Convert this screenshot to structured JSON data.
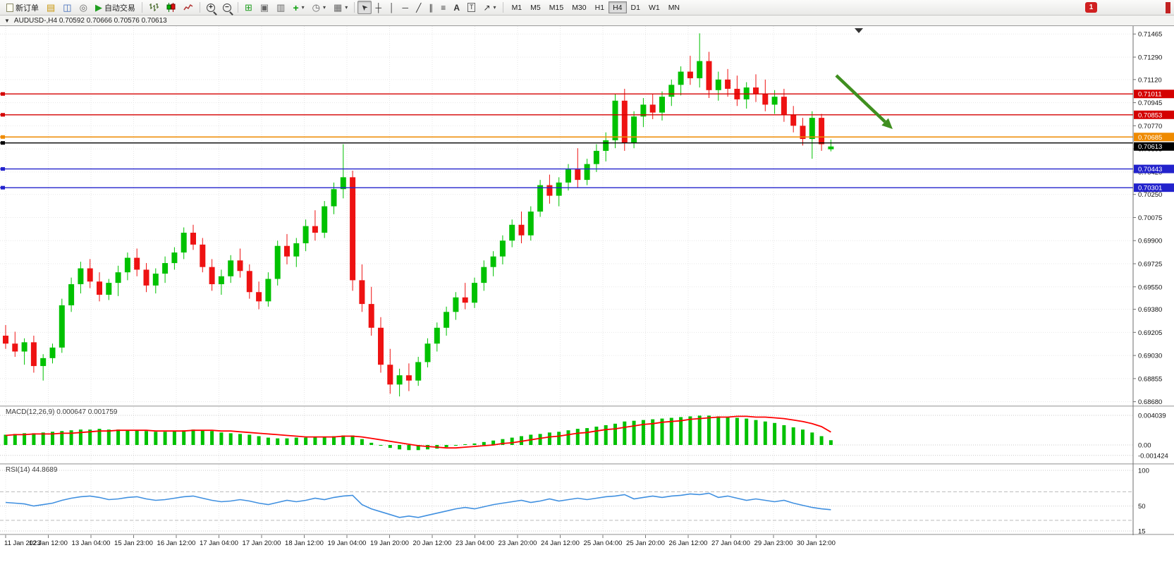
{
  "toolbar": {
    "new_order_label": "新订单",
    "autotrade_label": "自动交易",
    "timeframes": [
      "M1",
      "M5",
      "M15",
      "M30",
      "H1",
      "H4",
      "D1",
      "W1",
      "MN"
    ],
    "active_timeframe": "H4",
    "notification_count": "1",
    "icons": {
      "market_watch": "▤",
      "data_window": "◫",
      "navigator": "◎",
      "autotrade": "▶",
      "zoom_in": "+",
      "zoom_out": "−",
      "tile": "⊞",
      "cascade": "▣",
      "arrange": "▥",
      "indicators_plus": "+",
      "periods": "◷",
      "templates": "▦",
      "caret": "▾",
      "cursor": "➤",
      "crosshair": "┼",
      "vline": "│",
      "hline": "─",
      "trendline": "╱",
      "channel": "∥",
      "fibonacci": "≡",
      "text": "A",
      "text_label": "T",
      "arrows": "↗",
      "window_menu": "▼"
    }
  },
  "chart": {
    "title": "AUDUSD-,H4 0.70592 0.70666 0.70576 0.70613"
  },
  "chart_data": {
    "type": "candlestick",
    "symbol": "AUDUSD-",
    "timeframe": "H4",
    "current_bar": {
      "open": 0.70592,
      "high": 0.70666,
      "low": 0.70576,
      "close": 0.70613
    },
    "colors": {
      "bull": "#00c100",
      "bear": "#ee1212",
      "macd_hist": "#00c100",
      "macd_signal": "#ff0000",
      "rsi": "#4090e0",
      "arrow": "#3f8f1f"
    },
    "price_range": {
      "top": 0.71525,
      "bottom": 0.68662
    },
    "price_axis_ticks": [
      "0.71465",
      "0.71290",
      "0.71120",
      "0.70945",
      "0.70770",
      "0.70595",
      "0.70420",
      "0.70250",
      "0.70075",
      "0.69900",
      "0.69725",
      "0.69550",
      "0.69380",
      "0.69205",
      "0.69030",
      "0.68855",
      "0.68680"
    ],
    "time_labels": [
      "11 Jan 2023",
      "12 Jan 12:00",
      "13 Jan 04:00",
      "15 Jan 23:00",
      "16 Jan 12:00",
      "17 Jan 04:00",
      "17 Jan 20:00",
      "18 Jan 12:00",
      "19 Jan 04:00",
      "19 Jan 20:00",
      "20 Jan 12:00",
      "23 Jan 04:00",
      "23 Jan 20:00",
      "24 Jan 12:00",
      "25 Jan 04:00",
      "25 Jan 20:00",
      "26 Jan 12:00",
      "27 Jan 04:00",
      "29 Jan 23:00",
      "30 Jan 12:00"
    ],
    "candles": [
      [
        0.6918,
        0.6926,
        0.6908,
        0.6912
      ],
      [
        0.6912,
        0.6921,
        0.6902,
        0.6906
      ],
      [
        0.6906,
        0.6916,
        0.6896,
        0.6913
      ],
      [
        0.6913,
        0.6918,
        0.689,
        0.6895
      ],
      [
        0.6895,
        0.6904,
        0.6884,
        0.6901
      ],
      [
        0.6901,
        0.6912,
        0.6897,
        0.6909
      ],
      [
        0.6909,
        0.6946,
        0.6905,
        0.6941
      ],
      [
        0.6941,
        0.6962,
        0.6936,
        0.6957
      ],
      [
        0.6957,
        0.6974,
        0.695,
        0.6969
      ],
      [
        0.6969,
        0.6976,
        0.6954,
        0.6959
      ],
      [
        0.6959,
        0.6966,
        0.6944,
        0.6949
      ],
      [
        0.6949,
        0.6961,
        0.6945,
        0.6958
      ],
      [
        0.6958,
        0.6971,
        0.6948,
        0.6966
      ],
      [
        0.6966,
        0.6981,
        0.696,
        0.6977
      ],
      [
        0.6977,
        0.6984,
        0.6963,
        0.6968
      ],
      [
        0.6968,
        0.6973,
        0.6951,
        0.6956
      ],
      [
        0.6956,
        0.6969,
        0.695,
        0.6965
      ],
      [
        0.6965,
        0.6978,
        0.6958,
        0.6973
      ],
      [
        0.6973,
        0.6985,
        0.6968,
        0.6981
      ],
      [
        0.6981,
        0.7,
        0.6976,
        0.6996
      ],
      [
        0.6996,
        0.7002,
        0.6983,
        0.6987
      ],
      [
        0.6987,
        0.6992,
        0.6966,
        0.697
      ],
      [
        0.697,
        0.6976,
        0.6952,
        0.6957
      ],
      [
        0.6957,
        0.6968,
        0.6949,
        0.6963
      ],
      [
        0.6963,
        0.6979,
        0.6958,
        0.6975
      ],
      [
        0.6975,
        0.6984,
        0.6962,
        0.6967
      ],
      [
        0.6967,
        0.6972,
        0.6946,
        0.6951
      ],
      [
        0.6951,
        0.6959,
        0.6938,
        0.6944
      ],
      [
        0.6944,
        0.6966,
        0.694,
        0.6961
      ],
      [
        0.6961,
        0.699,
        0.6956,
        0.6986
      ],
      [
        0.6986,
        0.6995,
        0.6972,
        0.6978
      ],
      [
        0.6978,
        0.6992,
        0.697,
        0.6988
      ],
      [
        0.6988,
        0.7006,
        0.6982,
        0.7001
      ],
      [
        0.7001,
        0.7013,
        0.699,
        0.6996
      ],
      [
        0.6996,
        0.702,
        0.6992,
        0.7016
      ],
      [
        0.7016,
        0.7034,
        0.701,
        0.7029
      ],
      [
        0.7029,
        0.7063,
        0.7022,
        0.7038
      ],
      [
        0.7038,
        0.7043,
        0.6952,
        0.696
      ],
      [
        0.696,
        0.6972,
        0.6936,
        0.6942
      ],
      [
        0.6942,
        0.6955,
        0.6918,
        0.6924
      ],
      [
        0.6924,
        0.6932,
        0.689,
        0.6896
      ],
      [
        0.6896,
        0.6908,
        0.6874,
        0.6881
      ],
      [
        0.6881,
        0.6893,
        0.6872,
        0.6888
      ],
      [
        0.6888,
        0.6897,
        0.6876,
        0.6884
      ],
      [
        0.6884,
        0.6902,
        0.688,
        0.6898
      ],
      [
        0.6898,
        0.6916,
        0.6894,
        0.6912
      ],
      [
        0.6912,
        0.6928,
        0.6906,
        0.6924
      ],
      [
        0.6924,
        0.694,
        0.6918,
        0.6936
      ],
      [
        0.6936,
        0.6951,
        0.693,
        0.6947
      ],
      [
        0.6947,
        0.6958,
        0.6938,
        0.6943
      ],
      [
        0.6943,
        0.6962,
        0.6939,
        0.6958
      ],
      [
        0.6958,
        0.6975,
        0.6952,
        0.697
      ],
      [
        0.697,
        0.6982,
        0.6963,
        0.6978
      ],
      [
        0.6978,
        0.6994,
        0.6972,
        0.699
      ],
      [
        0.699,
        0.7006,
        0.6985,
        0.7002
      ],
      [
        0.7002,
        0.7012,
        0.6988,
        0.6994
      ],
      [
        0.6994,
        0.7016,
        0.699,
        0.7012
      ],
      [
        0.7012,
        0.7036,
        0.7008,
        0.7032
      ],
      [
        0.7032,
        0.704,
        0.7018,
        0.7024
      ],
      [
        0.7024,
        0.7038,
        0.7016,
        0.7034
      ],
      [
        0.7034,
        0.7048,
        0.7028,
        0.7044
      ],
      [
        0.7044,
        0.706,
        0.703,
        0.7036
      ],
      [
        0.7036,
        0.7052,
        0.7032,
        0.7048
      ],
      [
        0.7048,
        0.7063,
        0.7042,
        0.7058
      ],
      [
        0.7058,
        0.7072,
        0.705,
        0.7066
      ],
      [
        0.7066,
        0.7101,
        0.706,
        0.7096
      ],
      [
        0.7096,
        0.7105,
        0.7058,
        0.7064
      ],
      [
        0.7064,
        0.7088,
        0.706,
        0.7084
      ],
      [
        0.7084,
        0.7098,
        0.7076,
        0.7093
      ],
      [
        0.7093,
        0.7101,
        0.7082,
        0.7087
      ],
      [
        0.7087,
        0.7103,
        0.7081,
        0.7099
      ],
      [
        0.7099,
        0.7112,
        0.7092,
        0.7108
      ],
      [
        0.7108,
        0.7122,
        0.71,
        0.7118
      ],
      [
        0.7118,
        0.713,
        0.7108,
        0.7113
      ],
      [
        0.7113,
        0.7147,
        0.7106,
        0.7126
      ],
      [
        0.7126,
        0.7133,
        0.7098,
        0.7104
      ],
      [
        0.7104,
        0.7118,
        0.7096,
        0.7112
      ],
      [
        0.7112,
        0.712,
        0.7099,
        0.7105
      ],
      [
        0.7105,
        0.7115,
        0.7092,
        0.7097
      ],
      [
        0.7097,
        0.711,
        0.709,
        0.7106
      ],
      [
        0.7106,
        0.7116,
        0.7095,
        0.7101
      ],
      [
        0.7101,
        0.7112,
        0.7088,
        0.7093
      ],
      [
        0.7093,
        0.7104,
        0.7086,
        0.7099
      ],
      [
        0.7099,
        0.7105,
        0.708,
        0.7085
      ],
      [
        0.7085,
        0.7092,
        0.7072,
        0.7077
      ],
      [
        0.7077,
        0.7083,
        0.7062,
        0.7067
      ],
      [
        0.7067,
        0.7088,
        0.7052,
        0.7083
      ],
      [
        0.7083,
        0.7086,
        0.7058,
        0.7063
      ],
      [
        0.70592,
        0.70666,
        0.70576,
        0.70613
      ]
    ],
    "hlines": [
      {
        "price": 0.71011,
        "label": "0.71011",
        "color": "#d40000",
        "badge": true
      },
      {
        "price": 0.70853,
        "label": "0.70853",
        "color": "#d40000",
        "badge": true
      },
      {
        "price": 0.70685,
        "label": "0.70685",
        "color": "#ef8a00",
        "badge": true
      },
      {
        "price": 0.7064,
        "label": "",
        "color": "#000000",
        "badge": false
      },
      {
        "price": 0.70443,
        "label": "0.70443",
        "color": "#2222cc",
        "badge": true
      },
      {
        "price": 0.70301,
        "label": "0.70301",
        "color": "#2222cc",
        "badge": true
      }
    ],
    "bid_badge": {
      "price": 0.70613,
      "label": "0.70613",
      "color": "#000000"
    },
    "macd": {
      "label": "MACD(12,26,9) 0.000647 0.001759",
      "main_value": 0.000647,
      "signal_value": 0.001759,
      "max": 0.004039,
      "min": -0.001424,
      "scale": [
        {
          "text": "0.004039",
          "value": 0.004039
        },
        {
          "text": "0.00",
          "value": 0
        },
        {
          "text": "-0.001424",
          "value": -0.001424
        }
      ],
      "histogram": [
        0.0014,
        0.0015,
        0.0016,
        0.0016,
        0.0017,
        0.0018,
        0.0019,
        0.002,
        0.0021,
        0.0021,
        0.0022,
        0.0021,
        0.0021,
        0.002,
        0.002,
        0.0019,
        0.0018,
        0.0018,
        0.0019,
        0.002,
        0.0021,
        0.002,
        0.0019,
        0.0017,
        0.0016,
        0.0015,
        0.0014,
        0.0012,
        0.001,
        0.0009,
        0.0009,
        0.001,
        0.001,
        0.0011,
        0.0011,
        0.0012,
        0.0013,
        0.0013,
        0.0008,
        0.0003,
        -0.0001,
        -0.0004,
        -0.0006,
        -0.0007,
        -0.0007,
        -0.0006,
        -0.0005,
        -0.0003,
        -0.0001,
        0.0001,
        0.0002,
        0.0004,
        0.0006,
        0.0008,
        0.001,
        0.0012,
        0.0014,
        0.0015,
        0.0017,
        0.0018,
        0.002,
        0.0022,
        0.0023,
        0.0025,
        0.0027,
        0.0029,
        0.0032,
        0.0033,
        0.0034,
        0.0035,
        0.0036,
        0.0037,
        0.0038,
        0.0039,
        0.004,
        0.004,
        0.0039,
        0.0038,
        0.0037,
        0.0036,
        0.0034,
        0.0032,
        0.003,
        0.0027,
        0.0024,
        0.0021,
        0.0017,
        0.0012,
        0.000647
      ],
      "signal": [
        0.0013,
        0.0014,
        0.0014,
        0.0015,
        0.0015,
        0.0015,
        0.0016,
        0.0016,
        0.0017,
        0.0018,
        0.0019,
        0.0019,
        0.002,
        0.002,
        0.002,
        0.002,
        0.0019,
        0.0019,
        0.0019,
        0.0019,
        0.002,
        0.002,
        0.002,
        0.0019,
        0.0019,
        0.0018,
        0.0017,
        0.0016,
        0.0015,
        0.0014,
        0.0013,
        0.0012,
        0.0011,
        0.0011,
        0.0011,
        0.0011,
        0.0012,
        0.0012,
        0.0011,
        0.0009,
        0.0007,
        0.0005,
        0.0003,
        0.0001,
        -0.0001,
        -0.0002,
        -0.0003,
        -0.0004,
        -0.0004,
        -0.0003,
        -0.0002,
        -0.0001,
        0.0,
        0.0002,
        0.0003,
        0.0005,
        0.0007,
        0.0009,
        0.0011,
        0.0012,
        0.0014,
        0.0016,
        0.0017,
        0.0019,
        0.0021,
        0.0022,
        0.0024,
        0.0026,
        0.0028,
        0.0029,
        0.0031,
        0.0032,
        0.0033,
        0.0035,
        0.0036,
        0.0037,
        0.0038,
        0.0038,
        0.0039,
        0.0039,
        0.0038,
        0.0038,
        0.0037,
        0.0036,
        0.0034,
        0.0032,
        0.0029,
        0.0025,
        0.001759
      ]
    },
    "rsi": {
      "label": "RSI(14) 44.8689",
      "value": 44.8689,
      "range": {
        "max": 100,
        "min": 15
      },
      "scale": [
        {
          "text": "100",
          "value": 100
        },
        {
          "text": "50",
          "value": 50
        },
        {
          "text": "15",
          "value": 15
        }
      ],
      "levels": [
        70,
        30
      ],
      "values": [
        55,
        54,
        53,
        50,
        52,
        54,
        58,
        61,
        63,
        64,
        62,
        59,
        60,
        62,
        63,
        60,
        58,
        59,
        61,
        63,
        64,
        61,
        58,
        56,
        57,
        59,
        57,
        54,
        52,
        55,
        58,
        56,
        58,
        61,
        59,
        62,
        64,
        65,
        52,
        46,
        42,
        38,
        34,
        36,
        34,
        37,
        40,
        43,
        46,
        48,
        46,
        49,
        52,
        54,
        56,
        58,
        55,
        57,
        60,
        57,
        59,
        61,
        59,
        61,
        63,
        64,
        66,
        60,
        62,
        64,
        62,
        64,
        65,
        67,
        66,
        68,
        62,
        64,
        61,
        58,
        60,
        58,
        56,
        58,
        54,
        51,
        48,
        46,
        44.87
      ]
    }
  }
}
